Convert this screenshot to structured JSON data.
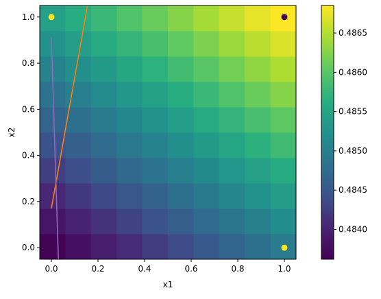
{
  "chart_data": {
    "type": "heatmap",
    "xlabel": "x1",
    "ylabel": "x2",
    "xlim": [
      -0.05,
      1.05
    ],
    "ylim": [
      -0.05,
      1.05
    ],
    "x_ticks": [
      "0.0",
      "0.2",
      "0.4",
      "0.6",
      "0.8",
      "1.0"
    ],
    "y_ticks": [
      "0.0",
      "0.2",
      "0.4",
      "0.6",
      "0.8",
      "1.0"
    ],
    "grid": false,
    "colormap": "viridis",
    "grid_size": [
      10,
      10
    ],
    "value_range": [
      0.48362,
      0.48685
    ],
    "value_model": {
      "base": 0.48365,
      "x1_coef": 0.0013,
      "x2_coef": 0.0018,
      "x1_x2_coef": 0.00015
    },
    "colorbar": {
      "range": [
        0.48362,
        0.48685
      ],
      "ticks": [
        "0.4840",
        "0.4845",
        "0.4850",
        "0.4855",
        "0.4860",
        "0.4865"
      ]
    },
    "points": [
      {
        "x": 0.0,
        "y": 1.0,
        "color": "#fde725"
      },
      {
        "x": 1.0,
        "y": 1.0,
        "color": "#440154"
      },
      {
        "x": 1.0,
        "y": 0.0,
        "color": "#fde725"
      }
    ],
    "lines": [
      {
        "color": "#ff7f0e",
        "x": [
          0.0,
          0.155
        ],
        "y": [
          0.17,
          1.05
        ]
      },
      {
        "color": "#9467bd",
        "x": [
          0.0,
          0.03
        ],
        "y": [
          0.91,
          -0.05
        ]
      }
    ]
  }
}
